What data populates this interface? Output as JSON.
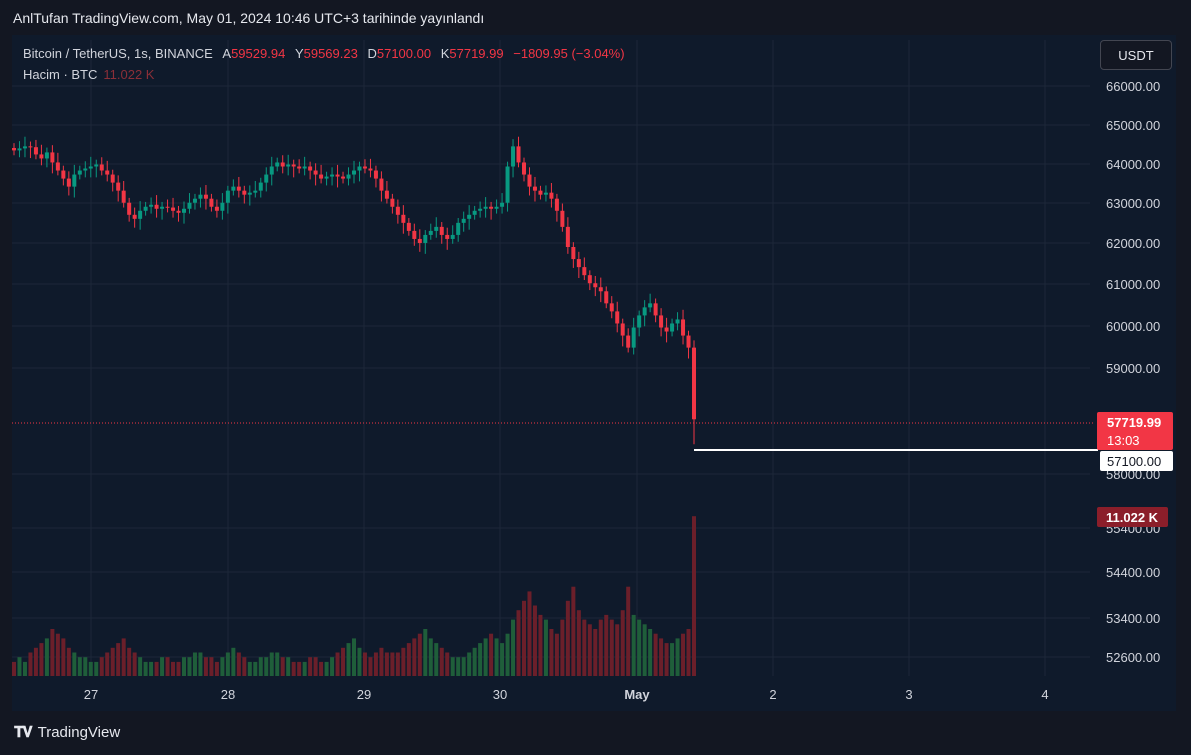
{
  "caption": "AnlTufan TradingView.com, May 01, 2024 10:46 UTC+3 tarihinde yayınlandı",
  "legend": {
    "symbol": "Bitcoin / TetherUS, 1s, BINANCE",
    "open_label": "A",
    "open": "59529.94",
    "high_label": "Y",
    "high": "59569.23",
    "low_label": "D",
    "low": "57100.00",
    "close_label": "K",
    "close": "57719.99",
    "change": "−1809.95 (−3.04%)",
    "volume_label": "Hacim · BTC",
    "volume": "11.022 K"
  },
  "currency_button": "USDT",
  "footer_brand": "TradingView",
  "colors": {
    "up": "#089981",
    "down": "#f23645",
    "vol_up": "#1f5e3a",
    "vol_down": "#6b1f2a",
    "bg": "#0f1a2b"
  },
  "chart_data": {
    "type": "candlestick",
    "price_axis_labels": [
      "66000.00",
      "65000.00",
      "64000.00",
      "63000.00",
      "62000.00",
      "61000.00",
      "60000.00",
      "59000.00",
      "58000.00",
      "55400.00",
      "54400.00",
      "53400.00",
      "52600.00"
    ],
    "x_tick_labels": [
      "27",
      "28",
      "29",
      "30",
      "May",
      "2",
      "3",
      "4"
    ],
    "current_price": {
      "value": "57719.99",
      "countdown": "13:03"
    },
    "low_marker": "57100.00",
    "volume_marker": "11.022 K",
    "candles": [
      64400,
      64450,
      64500,
      64480,
      64300,
      64200,
      64350,
      64100,
      63900,
      63700,
      63500,
      63800,
      63900,
      63950,
      64000,
      64050,
      63900,
      63800,
      63600,
      63400,
      63100,
      62800,
      62700,
      62900,
      63000,
      63050,
      62950,
      63000,
      62980,
      62900,
      62850,
      62950,
      63100,
      63200,
      63300,
      63200,
      63000,
      62900,
      63100,
      63400,
      63500,
      63400,
      63300,
      63350,
      63400,
      63600,
      63800,
      64000,
      64100,
      64000,
      64050,
      64000,
      63950,
      64000,
      63900,
      63800,
      63700,
      63750,
      63800,
      63750,
      63700,
      63800,
      63900,
      64000,
      63950,
      63900,
      63700,
      63400,
      63200,
      63000,
      62800,
      62600,
      62400,
      62200,
      62100,
      62300,
      62400,
      62500,
      62300,
      62200,
      62300,
      62600,
      62700,
      62800,
      62900,
      62950,
      63000,
      62950,
      63000,
      63100,
      64000,
      64500,
      64100,
      63800,
      63500,
      63400,
      63300,
      63350,
      63200,
      62900,
      62500,
      62000,
      61700,
      61500,
      61300,
      61100,
      61000,
      60900,
      60600,
      60400,
      60100,
      59800,
      59500,
      60000,
      60300,
      60500,
      60600,
      60300,
      60000,
      59900,
      60100,
      60200,
      59800,
      59500,
      57720
    ],
    "volumes": [
      3,
      4,
      3,
      5,
      6,
      7,
      8,
      10,
      9,
      8,
      6,
      5,
      4,
      4,
      3,
      3,
      4,
      5,
      6,
      7,
      8,
      6,
      5,
      4,
      3,
      3,
      3,
      4,
      4,
      3,
      3,
      4,
      4,
      5,
      5,
      4,
      4,
      3,
      4,
      5,
      6,
      5,
      4,
      3,
      3,
      4,
      4,
      5,
      5,
      4,
      4,
      3,
      3,
      3,
      4,
      4,
      3,
      3,
      4,
      5,
      6,
      7,
      8,
      6,
      5,
      4,
      5,
      6,
      5,
      5,
      5,
      6,
      7,
      8,
      9,
      10,
      8,
      7,
      6,
      5,
      4,
      4,
      4,
      5,
      6,
      7,
      8,
      9,
      8,
      7,
      9,
      12,
      14,
      16,
      18,
      15,
      13,
      12,
      10,
      9,
      12,
      16,
      19,
      14,
      12,
      11,
      10,
      12,
      13,
      12,
      11,
      14,
      19,
      13,
      12,
      11,
      10,
      9,
      8,
      7,
      7,
      8,
      9,
      10,
      34
    ]
  }
}
